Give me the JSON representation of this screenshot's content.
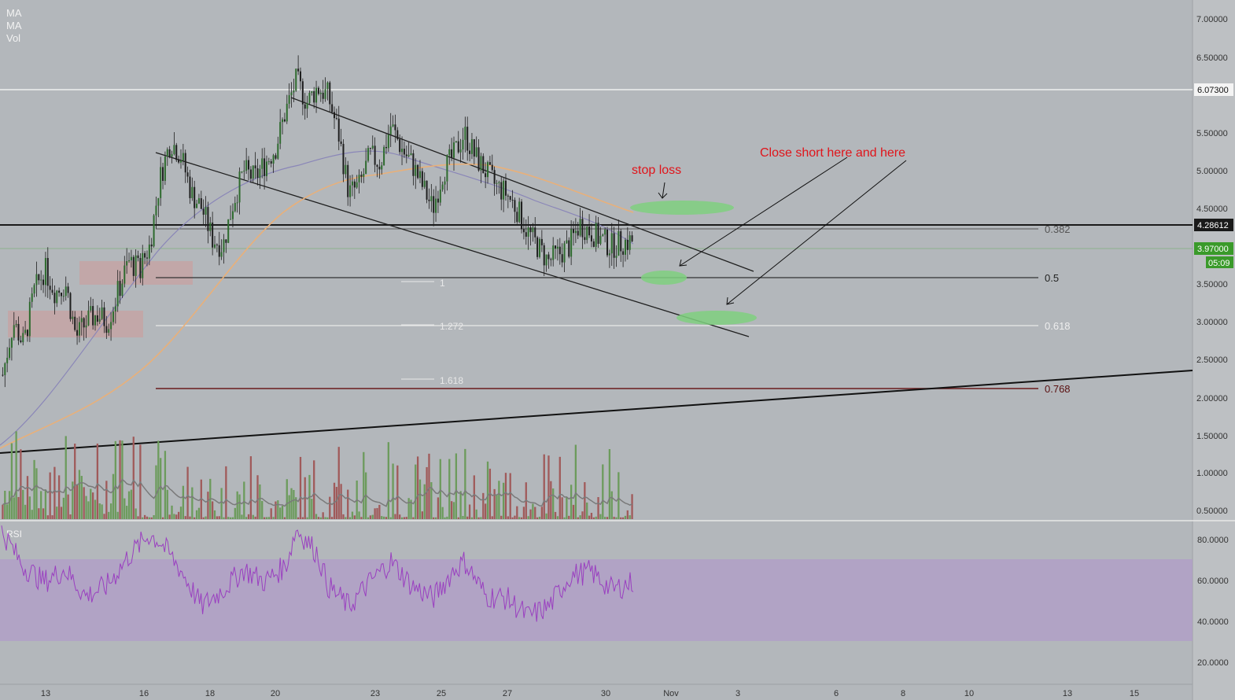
{
  "indicators": {
    "ma1": "MA",
    "ma2": "MA",
    "vol": "Vol",
    "rsi": "RSI"
  },
  "colors": {
    "background": "#b3b7bb",
    "axis_bg": "#bdc0c3",
    "up_candle": "#2e6b2e",
    "down_candle": "#1e1e1e",
    "vol_up": "#6c9b5c",
    "vol_down": "#a05a5a",
    "ma_fast": "#8a86b8",
    "ma_slow": "#e8b07a",
    "rsi_line": "#9a3fc0",
    "rsi_band": "#b09cc8",
    "annotation_red": "#e0141a",
    "zone_green": "#7fd07f",
    "zone_red": "#c9a0a0",
    "badge_green": "#3a9a2a"
  },
  "annotations": {
    "stop_loss": "stop loss",
    "close_short": "Close short here and here"
  },
  "price_axis": {
    "ticks": [
      "7.00000",
      "6.50000",
      "5.50000",
      "5.00000",
      "4.50000",
      "3.50000",
      "3.00000",
      "2.50000",
      "2.00000",
      "1.50000",
      "1.00000",
      "0.50000"
    ],
    "badges": {
      "resistance": "6.07300",
      "support": "4.28612",
      "last_price": "3.97000",
      "countdown": "05:09"
    }
  },
  "rsi_axis": {
    "ticks": [
      "80.0000",
      "60.0000",
      "40.0000",
      "20.0000"
    ]
  },
  "fib_retracement": {
    "levels": [
      "0.382",
      "0.5",
      "0.618",
      "0.768"
    ]
  },
  "fib_extension": {
    "levels": [
      "1",
      "1.272",
      "1.618"
    ]
  },
  "x_axis": {
    "ticks": [
      "13",
      "16",
      "18",
      "20",
      "23",
      "25",
      "27",
      "30",
      "Nov",
      "3",
      "6",
      "8",
      "10",
      "13",
      "15"
    ]
  },
  "chart_data": {
    "type": "candlestick",
    "instrument_note": "",
    "x_axis_labels": [
      "13",
      "16",
      "18",
      "20",
      "23",
      "25",
      "27",
      "30",
      "Nov",
      "3",
      "6",
      "8",
      "10",
      "13",
      "15"
    ],
    "y_range": [
      0.4,
      7.2
    ],
    "rsi_range": [
      14,
      88
    ],
    "rsi_band": [
      30,
      70
    ],
    "horizontal_levels": [
      {
        "price": 6.073,
        "label": "6.07300"
      },
      {
        "price": 4.28612,
        "label": "4.28612"
      },
      {
        "price": 3.97,
        "label": "3.97000"
      }
    ],
    "fib_levels": [
      {
        "ratio": "0.382",
        "price": 4.27
      },
      {
        "ratio": "0.5",
        "price": 3.6
      },
      {
        "ratio": "0.618",
        "price": 2.95
      },
      {
        "ratio": "0.768",
        "price": 2.12
      }
    ],
    "price_path": [
      [
        0,
        2.2
      ],
      [
        1,
        2.9
      ],
      [
        2,
        2.6
      ],
      [
        3,
        3.3
      ],
      [
        4,
        3.6
      ],
      [
        5,
        3.3
      ],
      [
        6,
        3.4
      ],
      [
        7,
        2.7
      ],
      [
        8,
        2.9
      ],
      [
        9,
        3.0
      ],
      [
        10,
        2.9
      ],
      [
        11,
        3.3
      ],
      [
        12,
        3.7
      ],
      [
        13,
        3.6
      ],
      [
        14,
        3.9
      ],
      [
        15,
        4.8
      ],
      [
        16,
        5.3
      ],
      [
        17,
        5.1
      ],
      [
        18,
        4.6
      ],
      [
        19,
        4.4
      ],
      [
        20,
        4.0
      ],
      [
        21,
        3.9
      ],
      [
        22,
        4.5
      ],
      [
        23,
        4.9
      ],
      [
        24,
        4.8
      ],
      [
        25,
        5.0
      ],
      [
        26,
        5.2
      ],
      [
        27,
        5.7
      ],
      [
        28,
        6.1
      ],
      [
        29,
        5.8
      ],
      [
        30,
        6.0
      ],
      [
        31,
        5.9
      ],
      [
        32,
        5.4
      ],
      [
        33,
        4.6
      ],
      [
        34,
        4.7
      ],
      [
        35,
        5.1
      ],
      [
        36,
        5.0
      ],
      [
        37,
        5.5
      ],
      [
        38,
        5.2
      ],
      [
        39,
        5.0
      ],
      [
        40,
        4.7
      ],
      [
        41,
        4.4
      ],
      [
        42,
        4.9
      ],
      [
        43,
        5.1
      ],
      [
        44,
        5.4
      ],
      [
        45,
        5.1
      ],
      [
        46,
        4.9
      ],
      [
        47,
        4.7
      ],
      [
        48,
        4.6
      ],
      [
        49,
        4.4
      ],
      [
        50,
        4.1
      ],
      [
        51,
        3.9
      ],
      [
        52,
        3.7
      ],
      [
        53,
        3.8
      ],
      [
        54,
        3.9
      ],
      [
        55,
        4.2
      ],
      [
        56,
        4.1
      ],
      [
        57,
        4.0
      ],
      [
        58,
        3.9
      ],
      [
        59,
        3.95
      ],
      [
        60,
        3.97
      ]
    ],
    "rsi_path": [
      [
        0,
        77
      ],
      [
        2,
        60
      ],
      [
        4,
        52
      ],
      [
        6,
        58
      ],
      [
        8,
        45
      ],
      [
        10,
        50
      ],
      [
        12,
        64
      ],
      [
        14,
        75
      ],
      [
        15,
        72
      ],
      [
        17,
        58
      ],
      [
        19,
        40
      ],
      [
        21,
        48
      ],
      [
        23,
        58
      ],
      [
        25,
        52
      ],
      [
        27,
        60
      ],
      [
        28,
        78
      ],
      [
        30,
        66
      ],
      [
        31,
        50
      ],
      [
        33,
        40
      ],
      [
        35,
        52
      ],
      [
        37,
        62
      ],
      [
        39,
        50
      ],
      [
        41,
        44
      ],
      [
        43,
        58
      ],
      [
        44,
        62
      ],
      [
        46,
        45
      ],
      [
        48,
        44
      ],
      [
        50,
        35
      ],
      [
        52,
        40
      ],
      [
        54,
        55
      ],
      [
        56,
        57
      ],
      [
        58,
        48
      ],
      [
        60,
        52
      ]
    ]
  }
}
